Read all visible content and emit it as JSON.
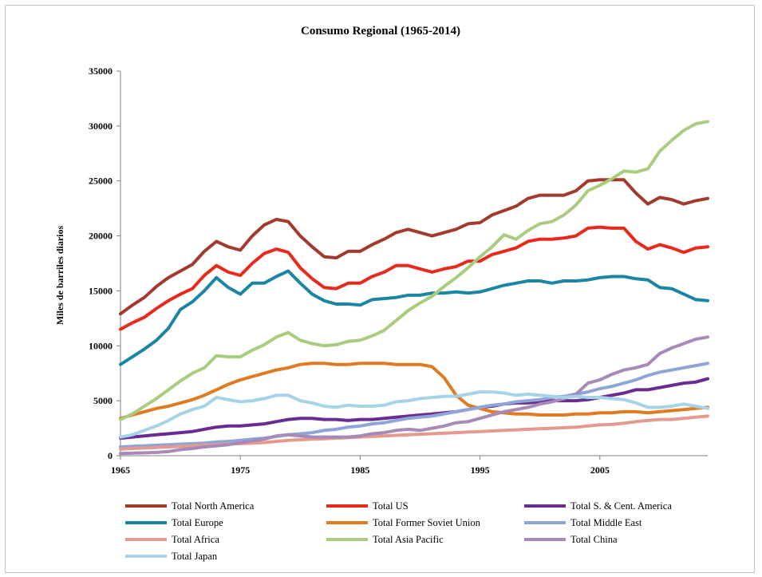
{
  "chart_data": {
    "type": "line",
    "title": "Consumo Regional (1965-2014)",
    "xlabel": "",
    "ylabel": "Miles de barriles diarios",
    "xlim": [
      1965,
      2014
    ],
    "ylim": [
      0,
      35000
    ],
    "yticks": [
      0,
      5000,
      10000,
      15000,
      20000,
      25000,
      30000,
      35000
    ],
    "xticks": [
      1965,
      1975,
      1985,
      1995,
      2005
    ],
    "grid": false,
    "legend_position": "bottom",
    "x": [
      1965,
      1966,
      1967,
      1968,
      1969,
      1970,
      1971,
      1972,
      1973,
      1974,
      1975,
      1976,
      1977,
      1978,
      1979,
      1980,
      1981,
      1982,
      1983,
      1984,
      1985,
      1986,
      1987,
      1988,
      1989,
      1990,
      1991,
      1992,
      1993,
      1994,
      1995,
      1996,
      1997,
      1998,
      1999,
      2000,
      2001,
      2002,
      2003,
      2004,
      2005,
      2006,
      2007,
      2008,
      2009,
      2010,
      2011,
      2012,
      2013,
      2014
    ],
    "series": [
      {
        "name": "Total North America",
        "color": "#a33a2e",
        "values": [
          12900,
          13700,
          14400,
          15400,
          16200,
          16800,
          17400,
          18600,
          19500,
          19000,
          18700,
          20000,
          21000,
          21500,
          21300,
          20000,
          19000,
          18100,
          18000,
          18600,
          18600,
          19200,
          19700,
          20300,
          20600,
          20300,
          20000,
          20300,
          20600,
          21100,
          21200,
          21900,
          22300,
          22700,
          23400,
          23700,
          23700,
          23700,
          24100,
          25000,
          25100,
          25100,
          25100,
          23900,
          22900,
          23500,
          23300,
          22900,
          23200,
          23400
        ]
      },
      {
        "name": "Total US",
        "color": "#e8291c",
        "values": [
          11500,
          12100,
          12600,
          13400,
          14100,
          14700,
          15200,
          16400,
          17300,
          16700,
          16400,
          17500,
          18400,
          18800,
          18500,
          17100,
          16100,
          15300,
          15200,
          15700,
          15700,
          16300,
          16700,
          17300,
          17300,
          17000,
          16700,
          17000,
          17200,
          17700,
          17700,
          18300,
          18600,
          18900,
          19500,
          19700,
          19700,
          19800,
          20000,
          20700,
          20800,
          20700,
          20700,
          19500,
          18800,
          19200,
          18900,
          18500,
          18900,
          19000
        ]
      },
      {
        "name": "Total S. & Cent. America",
        "color": "#6a2c91",
        "values": [
          1600,
          1700,
          1800,
          1900,
          2000,
          2100,
          2200,
          2400,
          2600,
          2700,
          2700,
          2800,
          2900,
          3100,
          3300,
          3400,
          3400,
          3300,
          3300,
          3200,
          3300,
          3300,
          3400,
          3500,
          3600,
          3700,
          3800,
          3900,
          4000,
          4200,
          4400,
          4500,
          4700,
          4800,
          4800,
          4900,
          5000,
          5000,
          5000,
          5100,
          5300,
          5500,
          5700,
          6000,
          6000,
          6200,
          6400,
          6600,
          6700,
          7000
        ]
      },
      {
        "name": "Total Europe",
        "color": "#1a86a3",
        "values": [
          8300,
          9000,
          9700,
          10500,
          11600,
          13300,
          14000,
          15000,
          16200,
          15300,
          14700,
          15700,
          15700,
          16300,
          16800,
          15700,
          14700,
          14100,
          13800,
          13800,
          13700,
          14200,
          14300,
          14400,
          14600,
          14600,
          14800,
          14800,
          14900,
          14800,
          14900,
          15200,
          15500,
          15700,
          15900,
          15900,
          15700,
          15900,
          15900,
          16000,
          16200,
          16300,
          16300,
          16100,
          16000,
          15300,
          15200,
          14700,
          14200,
          14100
        ]
      },
      {
        "name": "Total Former Soviet Union",
        "color": "#e07b22",
        "values": [
          3400,
          3700,
          4000,
          4300,
          4500,
          4800,
          5100,
          5500,
          6000,
          6500,
          6900,
          7200,
          7500,
          7800,
          8000,
          8300,
          8400,
          8400,
          8300,
          8300,
          8400,
          8400,
          8400,
          8300,
          8300,
          8300,
          8100,
          7100,
          5500,
          4600,
          4300,
          4000,
          3900,
          3800,
          3800,
          3700,
          3700,
          3700,
          3800,
          3800,
          3900,
          3900,
          4000,
          4000,
          3900,
          4000,
          4100,
          4200,
          4300,
          4400
        ]
      },
      {
        "name": "Total Middle East",
        "color": "#8fa5d8",
        "values": [
          800,
          850,
          900,
          950,
          1000,
          1050,
          1100,
          1150,
          1250,
          1300,
          1400,
          1500,
          1600,
          1750,
          1900,
          2000,
          2100,
          2300,
          2400,
          2600,
          2700,
          2900,
          3000,
          3200,
          3400,
          3500,
          3600,
          3800,
          4000,
          4200,
          4400,
          4600,
          4700,
          4900,
          5000,
          5100,
          5300,
          5400,
          5600,
          5800,
          6100,
          6300,
          6600,
          6900,
          7300,
          7600,
          7800,
          8000,
          8200,
          8400
        ]
      },
      {
        "name": "Total Africa",
        "color": "#e39a8f",
        "values": [
          600,
          650,
          700,
          750,
          800,
          850,
          900,
          950,
          1000,
          1050,
          1100,
          1150,
          1200,
          1300,
          1400,
          1450,
          1500,
          1550,
          1600,
          1650,
          1700,
          1750,
          1800,
          1850,
          1900,
          1950,
          2000,
          2050,
          2100,
          2150,
          2200,
          2250,
          2300,
          2350,
          2400,
          2450,
          2500,
          2550,
          2600,
          2700,
          2800,
          2850,
          2950,
          3100,
          3200,
          3300,
          3300,
          3400,
          3500,
          3600
        ]
      },
      {
        "name": "Total Asia Pacific",
        "color": "#a9cc7e",
        "values": [
          3300,
          3800,
          4500,
          5200,
          6000,
          6800,
          7500,
          8000,
          9100,
          9000,
          9000,
          9600,
          10100,
          10800,
          11200,
          10500,
          10200,
          10000,
          10100,
          10400,
          10500,
          10900,
          11400,
          12300,
          13200,
          13900,
          14500,
          15400,
          16200,
          17100,
          18100,
          19000,
          20100,
          19700,
          20500,
          21100,
          21300,
          21900,
          22800,
          24100,
          24600,
          25200,
          25900,
          25800,
          26100,
          27700,
          28700,
          29600,
          30200,
          30400
        ]
      },
      {
        "name": "Total China",
        "color": "#a78ab8",
        "values": [
          200,
          230,
          260,
          300,
          380,
          550,
          650,
          800,
          900,
          1000,
          1200,
          1350,
          1500,
          1800,
          1900,
          1800,
          1700,
          1700,
          1700,
          1700,
          1800,
          2000,
          2100,
          2300,
          2400,
          2300,
          2500,
          2700,
          3000,
          3100,
          3400,
          3700,
          4000,
          4200,
          4400,
          4700,
          4900,
          5200,
          5600,
          6600,
          6900,
          7400,
          7800,
          8000,
          8300,
          9300,
          9800,
          10200,
          10600,
          10800
        ]
      },
      {
        "name": "Total Japan",
        "color": "#a7d3e8",
        "values": [
          1700,
          1900,
          2300,
          2700,
          3200,
          3800,
          4200,
          4500,
          5300,
          5100,
          4900,
          5000,
          5200,
          5500,
          5500,
          5000,
          4800,
          4500,
          4400,
          4600,
          4500,
          4500,
          4600,
          4900,
          5000,
          5200,
          5300,
          5400,
          5400,
          5600,
          5800,
          5800,
          5700,
          5500,
          5600,
          5500,
          5400,
          5300,
          5400,
          5300,
          5300,
          5200,
          5100,
          4800,
          4400,
          4400,
          4500,
          4700,
          4500,
          4300
        ]
      }
    ]
  }
}
